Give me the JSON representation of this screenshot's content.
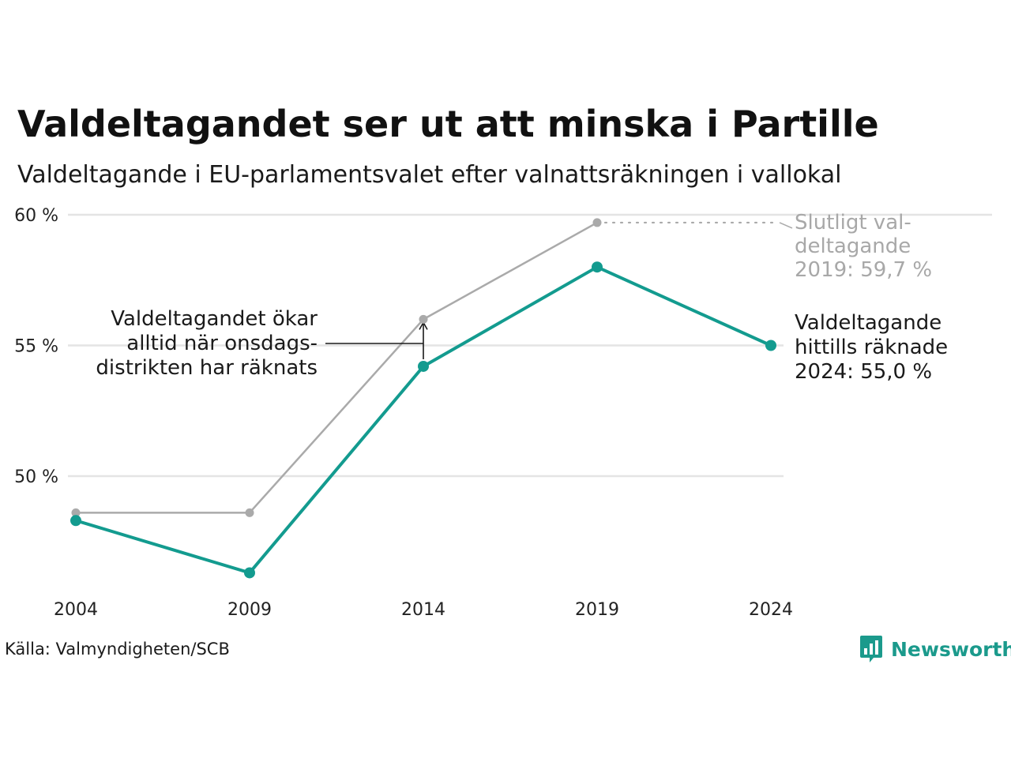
{
  "chart_data": {
    "type": "line",
    "title": "Valdeltagandet ser ut att minska i Partille",
    "subtitle": "Valdeltagande i EU-parlamentsvalet efter valnattsräkningen i vallokal",
    "categories": [
      "2004",
      "2009",
      "2014",
      "2019",
      "2024"
    ],
    "y_ticks": [
      {
        "value": 50,
        "label": "50 %"
      },
      {
        "value": 55,
        "label": "55 %"
      },
      {
        "value": 60,
        "label": "60 %"
      }
    ],
    "ylim": [
      45,
      60
    ],
    "grid": true,
    "series": [
      {
        "key": "final",
        "values": [
          48.6,
          48.6,
          56.0,
          59.7,
          null
        ],
        "color": "#aaaaaa"
      },
      {
        "key": "election_night",
        "values": [
          48.3,
          46.3,
          54.2,
          58.0,
          55.0
        ],
        "color": "#139b8f"
      }
    ],
    "annotations": {
      "final_label": [
        "Slutligt val-",
        "deltagande",
        "2019: 59,7 %"
      ],
      "current_label": [
        "Valdeltagande",
        "hittills räknade",
        "2024: 55,0 %"
      ],
      "wednesday_note": [
        "Valdeltagandet ökar",
        "alltid när onsdags-",
        "distrikten har räknats"
      ]
    },
    "source": "Källa: Valmyndigheten/SCB"
  },
  "brand": {
    "name": "Newsworthy",
    "color": "#1b9a8c"
  }
}
